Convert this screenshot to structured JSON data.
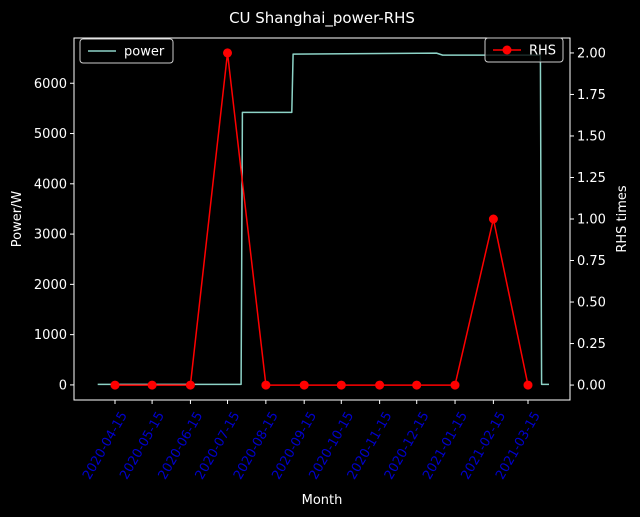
{
  "chart_data": {
    "type": "line",
    "title": "CU Shanghai_power-RHS",
    "xlabel": "Month",
    "ylabel_left": "Power/W",
    "ylabel_right": "RHS times",
    "x_ticks": [
      "2020-04-15",
      "2020-05-15",
      "2020-06-15",
      "2020-07-15",
      "2020-08-15",
      "2020-09-15",
      "2020-10-15",
      "2020-11-15",
      "2020-12-15",
      "2021-01-15",
      "2021-02-15",
      "2021-03-15"
    ],
    "ylim_left": [
      -300,
      6900
    ],
    "yticks_left": [
      0,
      1000,
      2000,
      3000,
      4000,
      5000,
      6000
    ],
    "ylim_right": [
      -0.09,
      2.09
    ],
    "yticks_right": [
      "0.00",
      "0.25",
      "0.50",
      "0.75",
      "1.00",
      "1.25",
      "1.50",
      "1.75",
      "2.00"
    ],
    "grid": false,
    "colors": {
      "background": "#000000",
      "power": "#8dd3c7",
      "rhs": "#ff0000",
      "rhs_marker": "#ff0000",
      "xtick_label": "#0000cc",
      "text": "#ffffff"
    },
    "series": [
      {
        "name": "power",
        "axis": "left",
        "style": "line",
        "points": [
          [
            "2020-04-01",
            10
          ],
          [
            "2020-07-26",
            10
          ],
          [
            "2020-07-27",
            5420
          ],
          [
            "2020-09-05",
            5420
          ],
          [
            "2020-09-06",
            6580
          ],
          [
            "2020-12-31",
            6600
          ],
          [
            "2021-01-05",
            6560
          ],
          [
            "2021-03-25",
            6560
          ],
          [
            "2021-03-26",
            10
          ],
          [
            "2021-04-01",
            10
          ]
        ]
      },
      {
        "name": "RHS",
        "axis": "right",
        "style": "line-marker",
        "points": [
          [
            "2020-04-15",
            0
          ],
          [
            "2020-05-15",
            0
          ],
          [
            "2020-06-15",
            0
          ],
          [
            "2020-07-15",
            2
          ],
          [
            "2020-08-15",
            0
          ],
          [
            "2020-09-15",
            0
          ],
          [
            "2020-10-15",
            0
          ],
          [
            "2020-11-15",
            0
          ],
          [
            "2020-12-15",
            0
          ],
          [
            "2021-01-15",
            0
          ],
          [
            "2021-02-15",
            1
          ],
          [
            "2021-03-15",
            0
          ]
        ]
      }
    ],
    "legends": [
      {
        "label": "power",
        "placement": "top-left"
      },
      {
        "label": "RHS",
        "placement": "top-right"
      }
    ]
  }
}
